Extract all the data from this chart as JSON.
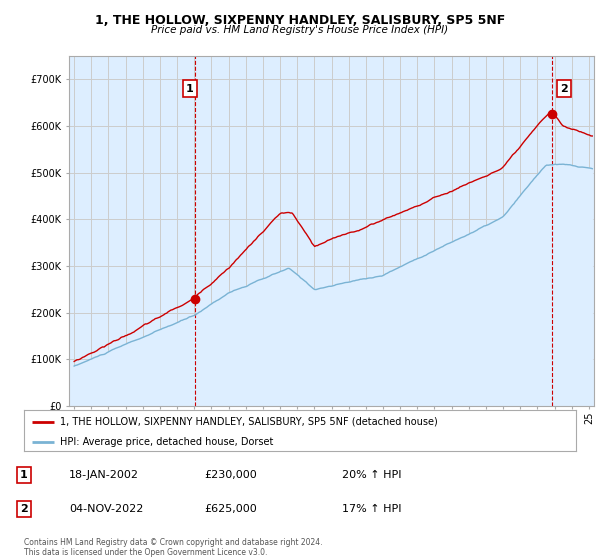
{
  "title": "1, THE HOLLOW, SIXPENNY HANDLEY, SALISBURY, SP5 5NF",
  "subtitle": "Price paid vs. HM Land Registry's House Price Index (HPI)",
  "legend_line1": "1, THE HOLLOW, SIXPENNY HANDLEY, SALISBURY, SP5 5NF (detached house)",
  "legend_line2": "HPI: Average price, detached house, Dorset",
  "sale1_label": "1",
  "sale1_date": "18-JAN-2002",
  "sale1_price": "£230,000",
  "sale1_hpi": "20% ↑ HPI",
  "sale1_year": 2002.05,
  "sale1_value": 230000,
  "sale2_label": "2",
  "sale2_date": "04-NOV-2022",
  "sale2_price": "£625,000",
  "sale2_hpi": "17% ↑ HPI",
  "sale2_year": 2022.84,
  "sale2_value": 625000,
  "copyright": "Contains HM Land Registry data © Crown copyright and database right 2024.\nThis data is licensed under the Open Government Licence v3.0.",
  "hpi_color": "#7ab3d4",
  "price_color": "#cc0000",
  "vline_color": "#cc0000",
  "fill_color": "#ddeeff",
  "background_color": "#ffffff",
  "grid_color": "#cccccc",
  "ylim": [
    0,
    750000
  ],
  "yticks": [
    0,
    100000,
    200000,
    300000,
    400000,
    500000,
    600000,
    700000
  ],
  "xlim_start": 1994.7,
  "xlim_end": 2025.3
}
